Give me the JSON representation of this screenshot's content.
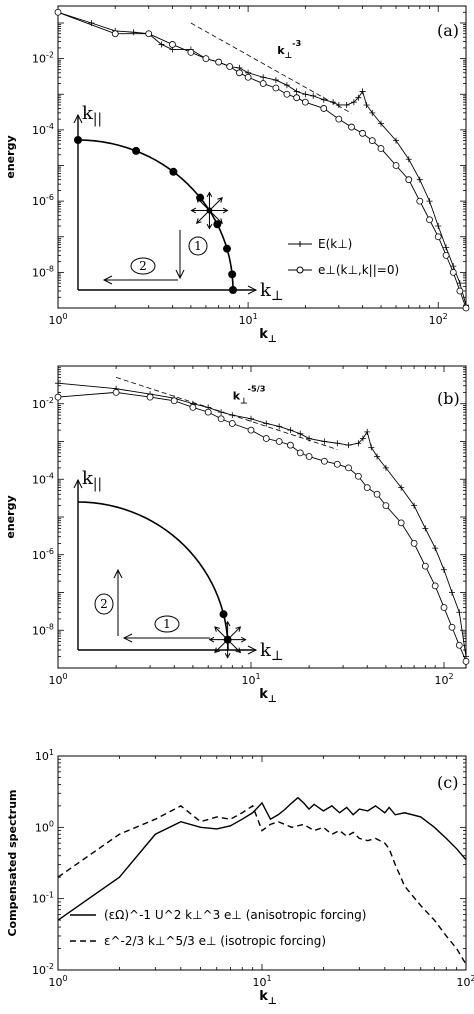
{
  "chart_data": [
    {
      "type": "line",
      "panel_label": "(a)",
      "xlabel": "k⊥",
      "ylabel": "energy",
      "xscale": "log",
      "yscale": "log",
      "xlim": [
        1,
        140
      ],
      "ylim": [
        1e-09,
        0.3
      ],
      "x_tick_labels": [
        "10^0",
        "10^1",
        "10^2"
      ],
      "y_tick_labels": [
        "10^-2",
        "10^-4",
        "10^-6",
        "10^-8"
      ],
      "reference_line": {
        "label": "k⊥^-3",
        "style": "dashed",
        "slope": -3,
        "x": [
          5,
          35
        ],
        "y_start": 0.1
      },
      "legend_position": "lower-right",
      "series": [
        {
          "name": "E(k⊥)",
          "marker": "plus",
          "x": [
            1,
            1.5,
            2,
            2.5,
            3,
            3.5,
            4,
            5,
            6,
            7,
            8,
            9,
            10,
            12,
            14,
            16,
            18,
            20,
            22,
            25,
            28,
            30,
            33,
            36,
            38,
            40,
            42,
            45,
            50,
            60,
            70,
            80,
            90,
            100,
            110,
            120,
            130,
            140
          ],
          "y": [
            0.2,
            0.1,
            0.06,
            0.055,
            0.05,
            0.025,
            0.018,
            0.018,
            0.01,
            0.008,
            0.006,
            0.0055,
            0.004,
            0.003,
            0.0025,
            0.0018,
            0.0012,
            0.001,
            0.0009,
            0.0007,
            0.0006,
            0.0005,
            0.0005,
            0.0006,
            0.0008,
            0.0012,
            0.0005,
            0.0003,
            0.00015,
            5e-05,
            1.5e-05,
            4e-06,
            1e-06,
            2e-07,
            5e-08,
            1.5e-08,
            5e-09,
            1.2e-09
          ]
        },
        {
          "name": "e⊥(k⊥,k||=0)",
          "marker": "circle",
          "x": [
            1,
            2,
            3,
            4,
            5,
            6,
            7,
            8,
            9,
            10,
            12,
            14,
            16,
            18,
            20,
            25,
            30,
            35,
            40,
            45,
            50,
            60,
            70,
            80,
            90,
            100,
            110,
            120,
            130,
            140
          ],
          "y": [
            0.2,
            0.05,
            0.05,
            0.025,
            0.015,
            0.01,
            0.008,
            0.006,
            0.004,
            0.003,
            0.002,
            0.0015,
            0.001,
            0.0008,
            0.0006,
            0.0004,
            0.0002,
            0.00012,
            8e-05,
            5e-05,
            3e-05,
            1e-05,
            4e-06,
            1e-06,
            3e-07,
            1e-07,
            3e-08,
            1e-08,
            3e-09,
            1e-09
          ]
        }
      ],
      "inset": {
        "ylabel": "k||",
        "xlabel": "k⊥",
        "arrow_labels": [
          "1",
          "2"
        ]
      }
    },
    {
      "type": "line",
      "panel_label": "(b)",
      "xlabel": "k⊥",
      "ylabel": "energy",
      "xscale": "log",
      "yscale": "log",
      "xlim": [
        1,
        130
      ],
      "ylim": [
        1e-09,
        0.1
      ],
      "x_tick_labels": [
        "10^0",
        "10^1",
        "10^2"
      ],
      "y_tick_labels": [
        "10^-2",
        "10^-4",
        "10^-6",
        "10^-8"
      ],
      "reference_line": {
        "label": "k⊥^-5/3",
        "style": "dashed",
        "slope": -1.6667,
        "x": [
          2,
          28
        ],
        "y_start": 0.05
      },
      "series": [
        {
          "name": "",
          "marker": "plus",
          "x": [
            1,
            2,
            3,
            4,
            5,
            6,
            7,
            8,
            10,
            12,
            14,
            16,
            18,
            20,
            24,
            28,
            32,
            36,
            38,
            40,
            42,
            45,
            50,
            60,
            70,
            80,
            90,
            100,
            110,
            120,
            130
          ],
          "y": [
            0.035,
            0.025,
            0.018,
            0.014,
            0.01,
            0.008,
            0.006,
            0.005,
            0.004,
            0.003,
            0.0025,
            0.002,
            0.0016,
            0.0012,
            0.001,
            0.0009,
            0.0008,
            0.0009,
            0.0012,
            0.0018,
            0.0007,
            0.0004,
            0.0002,
            6e-05,
            2e-05,
            5e-06,
            1.5e-06,
            4e-07,
            1e-07,
            3e-08,
            2e-09
          ]
        },
        {
          "name": "",
          "marker": "circle",
          "x": [
            1,
            2,
            3,
            4,
            5,
            6,
            7,
            8,
            10,
            12,
            14,
            16,
            18,
            20,
            24,
            28,
            32,
            36,
            40,
            45,
            50,
            60,
            70,
            80,
            90,
            100,
            110,
            120,
            130
          ],
          "y": [
            0.015,
            0.02,
            0.015,
            0.012,
            0.008,
            0.006,
            0.004,
            0.003,
            0.002,
            0.0012,
            0.001,
            0.0008,
            0.0005,
            0.0004,
            0.0003,
            0.00025,
            0.0002,
            0.00012,
            6e-05,
            4e-05,
            2e-05,
            7e-06,
            2e-06,
            5e-07,
            1.5e-07,
            4e-08,
            1.2e-08,
            4e-09,
            1.5e-09
          ]
        }
      ],
      "inset": {
        "ylabel": "k||",
        "xlabel": "k⊥",
        "arrow_labels": [
          "1",
          "2"
        ]
      }
    },
    {
      "type": "line",
      "panel_label": "(c)",
      "xlabel": "k⊥",
      "ylabel": "Compensated spectrum",
      "xscale": "log",
      "yscale": "log",
      "xlim": [
        1,
        100
      ],
      "ylim": [
        0.01,
        10
      ],
      "x_tick_labels": [
        "10^0",
        "10^1",
        "10^2"
      ],
      "y_tick_labels": [
        "10^1",
        "10^0",
        "10^-1",
        "10^-2"
      ],
      "legend_position": "lower-left",
      "series": [
        {
          "name": "(εΩ)^-1 U^2 k⊥^3 e⊥ (anisotropic forcing)",
          "style": "solid",
          "x": [
            1,
            2,
            3,
            4,
            5,
            6,
            7,
            8,
            9,
            10,
            11,
            12,
            13,
            14,
            15,
            16,
            17,
            18,
            20,
            22,
            24,
            26,
            28,
            30,
            33,
            36,
            40,
            42,
            45,
            50,
            60,
            70,
            80,
            90,
            100
          ],
          "y": [
            0.05,
            0.2,
            0.8,
            1.2,
            1.0,
            0.95,
            1.05,
            1.3,
            1.6,
            2.2,
            1.3,
            1.5,
            1.8,
            2.2,
            2.6,
            2.2,
            1.8,
            2.1,
            1.7,
            2.0,
            1.6,
            1.9,
            1.5,
            1.8,
            1.7,
            2.0,
            1.6,
            1.9,
            1.5,
            1.6,
            1.4,
            1.0,
            0.7,
            0.5,
            0.35
          ]
        },
        {
          "name": "ε^-2/3 k⊥^5/3 e⊥ (isotropic forcing)",
          "style": "dashed",
          "x": [
            1,
            2,
            3,
            4,
            5,
            6,
            7,
            8,
            9,
            10,
            11,
            12,
            14,
            16,
            18,
            20,
            22,
            24,
            26,
            28,
            30,
            33,
            36,
            40,
            42,
            45,
            50,
            60,
            70,
            80,
            90,
            100
          ],
          "y": [
            0.2,
            0.8,
            1.3,
            2.0,
            1.2,
            1.4,
            1.3,
            1.6,
            2.0,
            0.9,
            1.1,
            1.2,
            1.0,
            1.1,
            0.9,
            1.0,
            0.8,
            0.9,
            0.75,
            0.85,
            0.7,
            0.65,
            0.7,
            0.6,
            0.5,
            0.3,
            0.15,
            0.08,
            0.05,
            0.03,
            0.02,
            0.012
          ]
        }
      ]
    }
  ]
}
